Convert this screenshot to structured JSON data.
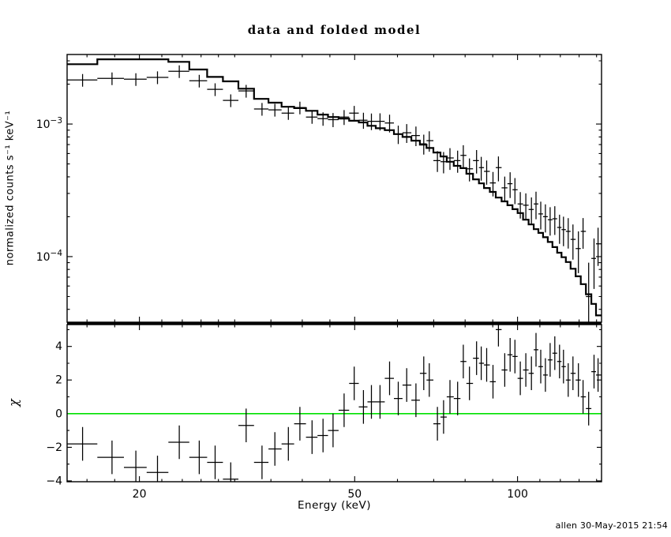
{
  "chart_data": {
    "type": "scatter",
    "title": "data and folded model",
    "xlabel": "Energy (keV)",
    "credit": "allen 30-May-2015 21:54",
    "xscale": "log",
    "xlim": [
      14.7,
      143
    ],
    "xticks": [
      20,
      50,
      100
    ],
    "xtick_labels": [
      "20",
      "50",
      "100"
    ],
    "xticks_minor": [
      16,
      18,
      22,
      24,
      26,
      28,
      30,
      35,
      40,
      45,
      60,
      70,
      80,
      90,
      110,
      120,
      130,
      140
    ],
    "legend": "none",
    "grid": false,
    "background_color": "#ffffff",
    "axis_color": "#000000",
    "energies_keV": [
      15.7,
      17.8,
      19.7,
      21.6,
      23.7,
      25.8,
      27.6,
      29.5,
      31.5,
      33.7,
      35.6,
      37.7,
      39.6,
      41.7,
      43.7,
      45.6,
      47.8,
      49.9,
      51.9,
      53.7,
      55.7,
      58.0,
      60.2,
      62.4,
      64.9,
      67.1,
      68.7,
      71.1,
      73.0,
      75.0,
      77.5,
      79.4,
      81.5,
      84.0,
      85.7,
      87.7,
      90.1,
      92.2,
      94.7,
      96.9,
      98.9,
      101.2,
      103.6,
      106.1,
      108.2,
      110.4,
      112.6,
      114.9,
      117.2,
      119.6,
      121.6,
      124.1,
      126.6,
      129.6,
      132.2,
      135.4,
      138.5,
      140.9
    ],
    "panels": [
      {
        "name": "spectrum",
        "ylabel": "normalized counts s⁻¹ keV⁻¹",
        "yscale": "log",
        "ylim": [
          3.2e-05,
          0.00335
        ],
        "yticks": [
          0.001,
          0.0001
        ],
        "ytick_labels": [
          "10^−3",
          "10^−4"
        ],
        "yticks_minor": [
          4e-05,
          5e-05,
          6e-05,
          7e-05,
          8e-05,
          9e-05,
          0.0002,
          0.0003,
          0.0004,
          0.0005,
          0.0006,
          0.0007,
          0.0008,
          0.0009,
          0.002,
          0.003
        ],
        "series": [
          {
            "name": "data",
            "style": "points-with-errors",
            "color": "#000000",
            "y": [
              0.00215,
              0.00221,
              0.00218,
              0.00225,
              0.0025,
              0.00212,
              0.00183,
              0.00151,
              0.00178,
              0.0013,
              0.00128,
              0.00121,
              0.00133,
              0.00113,
              0.0011,
              0.00108,
              0.00113,
              0.00121,
              0.00107,
              0.00105,
              0.00105,
              0.00102,
              0.00084,
              0.00086,
              0.00082,
              0.00071,
              0.00075,
              0.00053,
              0.00052,
              0.000555,
              0.00053,
              0.00058,
              0.00046,
              0.00053,
              0.00047,
              0.00044,
              0.00036,
              0.00047,
              0.00033,
              0.000355,
              0.00032,
              0.00025,
              0.000244,
              0.000227,
              0.00025,
              0.00021,
              0.0002,
              0.00019,
              0.000193,
              0.000166,
              0.00016,
              0.000155,
              0.000135,
              0.000115,
              0.000155,
              5e-05,
              9.7e-05,
              0.000125
            ]
          },
          {
            "name": "folded model",
            "style": "step-histogram",
            "color": "#000000",
            "y": [
              0.00283,
              0.00308,
              0.00308,
              0.00308,
              0.00295,
              0.00258,
              0.00227,
              0.0021,
              0.00185,
              0.00155,
              0.00145,
              0.00135,
              0.00132,
              0.00126,
              0.00118,
              0.00113,
              0.0011,
              0.00106,
              0.00103,
              0.00097,
              0.00093,
              0.0009,
              0.00084,
              0.0008,
              0.00075,
              0.0007,
              0.00066,
              0.00061,
              0.00057,
              0.00052,
              0.000484,
              0.000465,
              0.000422,
              0.000383,
              0.000357,
              0.000329,
              0.000308,
              0.000279,
              0.000261,
              0.000244,
              0.000228,
              0.000213,
              0.00019,
              0.000175,
              0.000161,
              0.000151,
              0.00014,
              0.000129,
              0.000118,
              0.000107,
              9.9e-05,
              9.1e-05,
              8.1e-05,
              7.1e-05,
              6.2e-05,
              5.2e-05,
              4.4e-05,
              3.6e-05
            ]
          }
        ]
      },
      {
        "name": "residuals",
        "ylabel": "χ",
        "yscale": "linear",
        "ylim": [
          -4.05,
          5.3
        ],
        "yticks": [
          4,
          2,
          0,
          -2,
          -4
        ],
        "ytick_labels": [
          "4",
          "2",
          "0",
          "−2",
          "−4"
        ],
        "yticks_minor": [
          -3,
          -1,
          1,
          3,
          5
        ],
        "zero_line_color": "#00e100",
        "series": [
          {
            "name": "chi",
            "style": "points-with-errors",
            "color": "#000000",
            "yerr": 1,
            "y": [
              -1.8,
              -2.6,
              -3.2,
              -3.5,
              -1.7,
              -2.6,
              -2.9,
              -3.9,
              -0.7,
              -2.9,
              -2.1,
              -1.8,
              -0.6,
              -1.4,
              -1.3,
              -1.0,
              0.2,
              1.8,
              0.4,
              0.7,
              0.7,
              2.1,
              0.9,
              1.7,
              0.8,
              2.4,
              2.0,
              -0.6,
              -0.2,
              1.0,
              0.9,
              3.1,
              1.8,
              3.3,
              3.0,
              2.9,
              1.9,
              5.0,
              2.6,
              3.5,
              3.4,
              2.1,
              2.6,
              2.4,
              3.8,
              2.8,
              2.3,
              3.2,
              3.6,
              3.1,
              2.8,
              2.0,
              2.4,
              2.0,
              1.0,
              0.3,
              2.5,
              2.3
            ]
          }
        ]
      }
    ]
  }
}
